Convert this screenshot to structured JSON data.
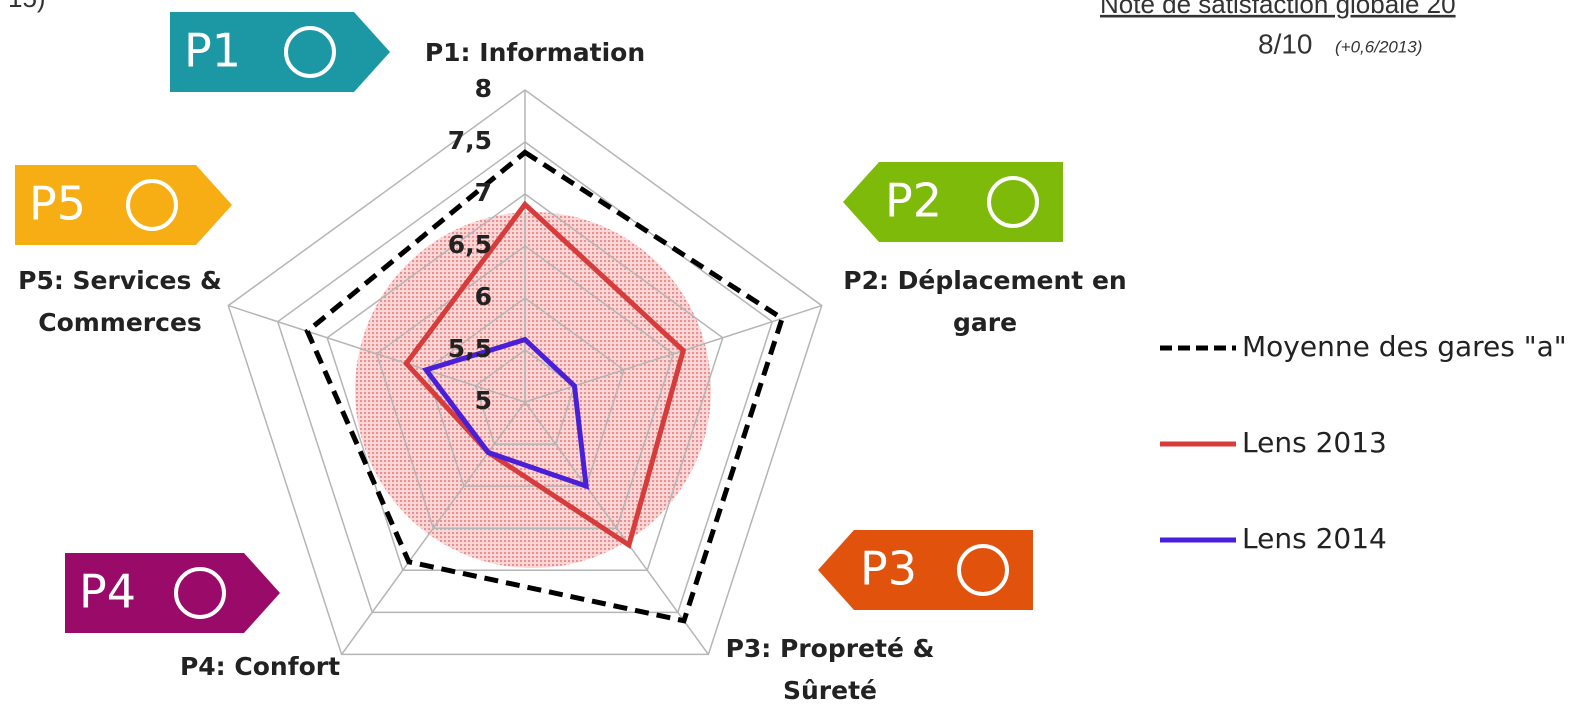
{
  "chart_data": {
    "type": "radar",
    "categories": [
      "P1: Information",
      "P2: Déplacement en gare",
      "P3: Propreté & Sûreté",
      "P4: Confort",
      "P5: Services & Commerces"
    ],
    "badges": [
      "P1",
      "P2",
      "P3",
      "P4",
      "P5"
    ],
    "ylim": [
      5,
      8
    ],
    "yticks": [
      5,
      5.5,
      6,
      6.5,
      7,
      7.5,
      8
    ],
    "yticks_labels": [
      "5",
      "5,5",
      "6",
      "6,5",
      "7",
      "7,5",
      "8"
    ],
    "grid": true,
    "series": [
      {
        "name": "Moyenne des gares \"a\"",
        "color": "#000000",
        "dashed": true,
        "values": [
          7.4,
          7.6,
          7.6,
          6.9,
          7.2
        ]
      },
      {
        "name": "Lens 2013",
        "color": "#d63c3c",
        "values": [
          6.9,
          6.6,
          6.7,
          5.6,
          6.2
        ]
      },
      {
        "name": "Lens 2014",
        "color": "#4a1fd8",
        "values": [
          5.6,
          5.5,
          6.0,
          5.6,
          6.0
        ]
      }
    ],
    "annotations": [
      "Note de satisfaction globale 20",
      "8/10",
      "(+0,6/2013)",
      "15)"
    ]
  }
}
